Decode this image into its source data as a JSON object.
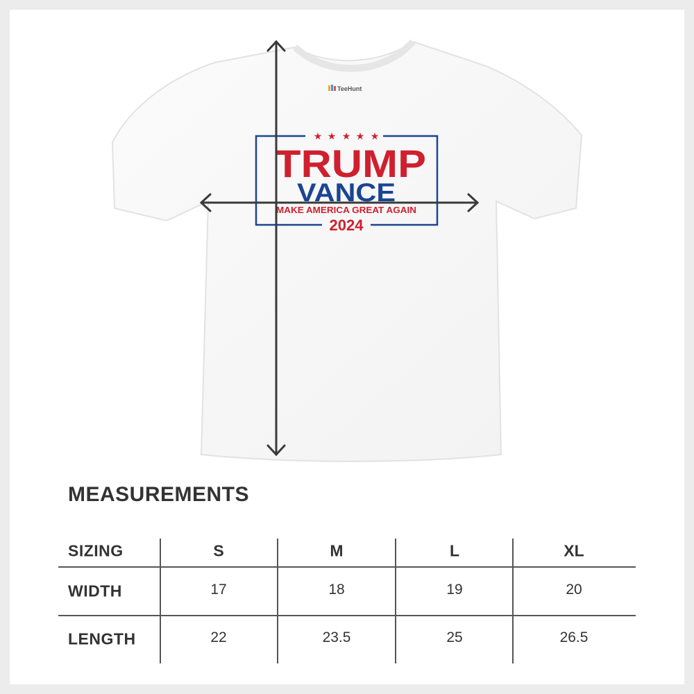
{
  "shirt": {
    "label_brand": "TeeHunt",
    "print": {
      "line1": "TRUMP",
      "line2": "VANCE",
      "line3": "MAKE AMERICA GREAT AGAIN",
      "line4": "2024",
      "stars": 5,
      "colors": {
        "red": "#d01f2e",
        "blue": "#1b4592"
      }
    }
  },
  "measurements": {
    "title": "MEASUREMENTS",
    "header": {
      "label": "SIZING",
      "sizes": [
        "S",
        "M",
        "L",
        "XL"
      ]
    },
    "rows": [
      {
        "label": "WIDTH",
        "values": [
          "17",
          "18",
          "19",
          "20"
        ]
      },
      {
        "label": "LENGTH",
        "values": [
          "22",
          "23.5",
          "25",
          "26.5"
        ]
      }
    ]
  }
}
